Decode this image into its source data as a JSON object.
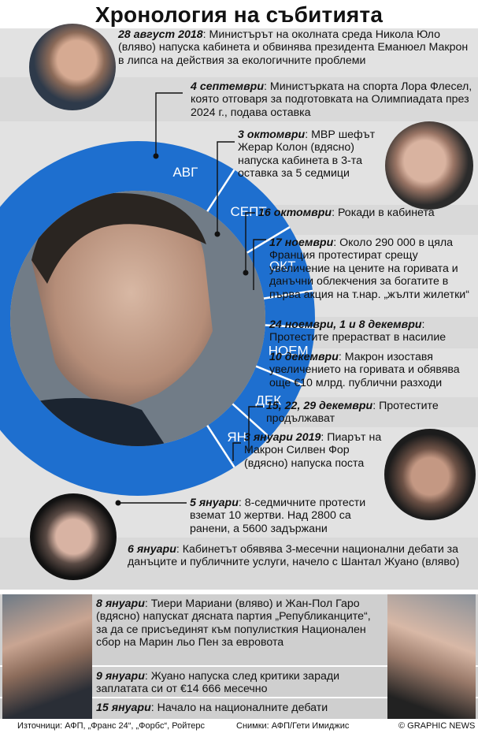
{
  "title": "Хронология на събитията",
  "months": [
    "АВГ",
    "СЕПТ",
    "ОКТ",
    "НОЕМ",
    "ДЕК",
    "ЯН"
  ],
  "events": [
    {
      "date": "28 август 2018",
      "sep": ":",
      "text": " Министърът на околната среда Никола Юло (вляво) напуска кабинета и обвинява президента Еманюел Макрон в липса на действия за екологичните проблеми"
    },
    {
      "date": "4 септември",
      "sep": ":",
      "text": " Министърката на спорта Лора Флесел, която отговаря за подготовката на Олимпиадата през 2024 г., подава оставка"
    },
    {
      "date": "3 октомври",
      "sep": ":",
      "text": " МВР шефът Жерар Колон (вдясно) напуска кабинета в 3-та оставка за 5 седмици"
    },
    {
      "date": "16 октомври",
      "sep": ":",
      "text": " Рокади в кабинета"
    },
    {
      "date": "17 ноември",
      "sep": ":",
      "text": " Около 290 000 в цяла Франция протестират срещу увеличение на цените на горивата и данъчни облекчения за богатите в първа акция на т.нар. „жълти жилетки“"
    },
    {
      "date": "24 ноември, 1 и 8 декември",
      "sep": ":",
      "text": " Протестите прерастват в насилие"
    },
    {
      "date": "10 декември",
      "sep": ":",
      "text": " Макрон изоставя увеличението на горивата и обявява още €10 млрд. публични разходи"
    },
    {
      "date": "15, 22, 29 декември",
      "sep": ":",
      "text": " Протестите продължават"
    },
    {
      "date": "3 януари 2019",
      "sep": ":",
      "text": " Пиарът на Макрон Силвен Фор (вдясно) напуска поста"
    },
    {
      "date": "5 януари",
      "sep": ":",
      "text": " 8-седмичните протести вземат 10 жертви. Над 2800 са ранени, а 5600 задържани"
    },
    {
      "date": "6 януари",
      "sep": ":",
      "text": " Кабинетът обявява 3-месечни национални дебати за данъците и публичните услуги, начело с Шантал Жуано (вляво)"
    },
    {
      "date": "8 януари",
      "sep": ":",
      "text": " Тиери Мариани (вляво) и Жан-Пол Гаро (вдясно) напускат дясната партия „Републиканците“, за да се присъединят към популистк­ия Национален сбор на Марин льо Пен за евровота"
    },
    {
      "date": "9 януари",
      "sep": ":",
      "text": " Жуано напуска след критики заради заплатата си от €14 666 месечно"
    },
    {
      "date": "15 януари",
      "sep": ":",
      "text": " Начало на националните дебати"
    }
  ],
  "footer": {
    "sources": "Източници: АФП, „Франс 24“, „Форбс“, Ройтерс",
    "photos": "Снимки: АФП/Гети Имиджис",
    "credit": "© GRAPHIC NEWS"
  },
  "colors": {
    "ring": "#1e6fcf",
    "band_light": "#e2e2e2",
    "band_dark": "#cfcfcf",
    "connector": "#111111"
  }
}
